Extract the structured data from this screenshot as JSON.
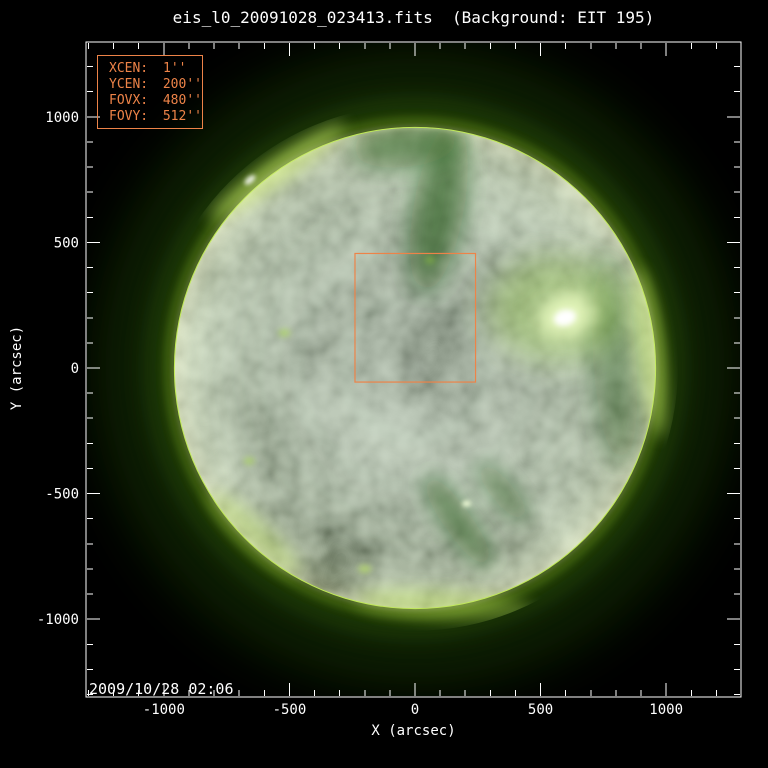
{
  "title": "eis_l0_20091028_023413.fits  (Background: EIT 195)",
  "info_box": {
    "rows": [
      {
        "label": "XCEN:",
        "value": "1",
        "unit": "''"
      },
      {
        "label": "YCEN:",
        "value": "200",
        "unit": "''"
      },
      {
        "label": "FOVX:",
        "value": "480",
        "unit": "''"
      },
      {
        "label": "FOVY:",
        "value": "512",
        "unit": "''"
      }
    ]
  },
  "timestamp": "2009/10/28 02:06",
  "colors": {
    "background": "#000000",
    "axis": "#FFFFFF",
    "accent": "#ED8348",
    "disk_green": "#2F7D10",
    "limb_green": "#BCE94A"
  },
  "chart_data": {
    "type": "heatmap",
    "title": "eis_l0_20091028_023413.fits  (Background: EIT 195)",
    "xlabel": "X (arcsec)",
    "ylabel": "Y (arcsec)",
    "xlim": [
      -1310,
      1298
    ],
    "ylim": [
      -1310,
      1298
    ],
    "x_major_ticks": [
      -1000,
      -500,
      0,
      500,
      1000
    ],
    "y_major_ticks": [
      -1000,
      -500,
      0,
      500,
      1000
    ],
    "major_tick_step": 500,
    "minor_tick_step": 100,
    "grid": false,
    "sun": {
      "cx": 0,
      "cy": 0,
      "r": 960
    },
    "fov_box": {
      "xcen": 1,
      "ycen": 200,
      "fovx": 480,
      "fovy": 512
    },
    "timestamp_label": "2009/10/28 02:06",
    "features": [
      {
        "name": "limb-arc-upper-left",
        "x": -551,
        "y": 786,
        "rx": 330,
        "ry": 55,
        "rot": -35,
        "color": "#CDEE72",
        "opacity": 0.5,
        "blur": 8,
        "clip": "halo"
      },
      {
        "name": "limb-bright-point",
        "x": -657,
        "y": 749,
        "rx": 26,
        "ry": 13,
        "rot": -40,
        "color": "#FFFFFF",
        "opacity": 0.85,
        "blur": 2,
        "clip": "halo"
      },
      {
        "name": "limb-arc-right",
        "x": 935,
        "y": 60,
        "rx": 55,
        "ry": 340,
        "rot": -8,
        "color": "#C4E866",
        "opacity": 0.45,
        "blur": 8,
        "clip": "halo"
      },
      {
        "name": "limb-arc-bottom",
        "x": 120,
        "y": -945,
        "rx": 360,
        "ry": 60,
        "rot": 4,
        "color": "#B9E057",
        "opacity": 0.4,
        "blur": 8,
        "clip": "halo"
      },
      {
        "name": "limb-arc-lower-left",
        "x": -640,
        "y": -660,
        "rx": 240,
        "ry": 55,
        "rot": 42,
        "color": "#B9E057",
        "opacity": 0.35,
        "blur": 8,
        "clip": "halo"
      },
      {
        "name": "dark-channel-top",
        "x": 95,
        "y": 640,
        "rx": 100,
        "ry": 340,
        "rot": 10,
        "color": "#0E4604",
        "opacity": 0.55,
        "blur": 12,
        "clip": "disk"
      },
      {
        "name": "dark-patch-top",
        "x": -40,
        "y": 890,
        "rx": 210,
        "ry": 90,
        "rot": -6,
        "color": "#0E4604",
        "opacity": 0.5,
        "blur": 12,
        "clip": "disk"
      },
      {
        "name": "dark-band-right",
        "x": 795,
        "y": 30,
        "rx": 85,
        "ry": 420,
        "rot": -4,
        "color": "#0E4604",
        "opacity": 0.38,
        "blur": 14,
        "clip": "disk"
      },
      {
        "name": "dark-lane-bottom-1",
        "x": 170,
        "y": -610,
        "rx": 220,
        "ry": 55,
        "rot": 55,
        "color": "#0E4604",
        "opacity": 0.5,
        "blur": 10,
        "clip": "disk"
      },
      {
        "name": "dark-lane-bottom-2",
        "x": 350,
        "y": -495,
        "rx": 150,
        "ry": 45,
        "rot": 50,
        "color": "#0E4604",
        "opacity": 0.42,
        "blur": 10,
        "clip": "disk"
      },
      {
        "name": "active-region-glow",
        "x": 560,
        "y": 235,
        "rx": 270,
        "ry": 210,
        "rot": 0,
        "color": "#8FC930",
        "opacity": 0.3,
        "blur": 14,
        "clip": "disk"
      },
      {
        "name": "active-region-halo",
        "x": 605,
        "y": 208,
        "rx": 115,
        "ry": 88,
        "rot": -20,
        "color": "#EFFFC4",
        "opacity": 0.8,
        "blur": 8,
        "clip": "disk"
      },
      {
        "name": "active-region-core",
        "x": 597,
        "y": 200,
        "rx": 45,
        "ry": 32,
        "rot": -15,
        "color": "#FFFFFF",
        "opacity": 1,
        "blur": 3,
        "clip": "disk"
      },
      {
        "name": "bright-point-1",
        "x": 205,
        "y": -540,
        "rx": 18,
        "ry": 13,
        "rot": 0,
        "color": "#F4FFDA",
        "opacity": 0.85,
        "blur": 2,
        "clip": "disk"
      },
      {
        "name": "bright-point-2",
        "x": -520,
        "y": 140,
        "rx": 24,
        "ry": 16,
        "rot": 0,
        "color": "#AEE04E",
        "opacity": 0.5,
        "blur": 3,
        "clip": "disk"
      },
      {
        "name": "bright-point-3",
        "x": -660,
        "y": -370,
        "rx": 22,
        "ry": 15,
        "rot": 0,
        "color": "#AEE04E",
        "opacity": 0.5,
        "blur": 3,
        "clip": "disk"
      },
      {
        "name": "bright-point-4",
        "x": -200,
        "y": -800,
        "rx": 26,
        "ry": 16,
        "rot": 0,
        "color": "#BCE75C",
        "opacity": 0.55,
        "blur": 3,
        "clip": "disk"
      },
      {
        "name": "bright-point-5",
        "x": 60,
        "y": 430,
        "rx": 20,
        "ry": 14,
        "rot": 0,
        "color": "#9ED43E",
        "opacity": 0.45,
        "blur": 3,
        "clip": "disk"
      }
    ]
  }
}
